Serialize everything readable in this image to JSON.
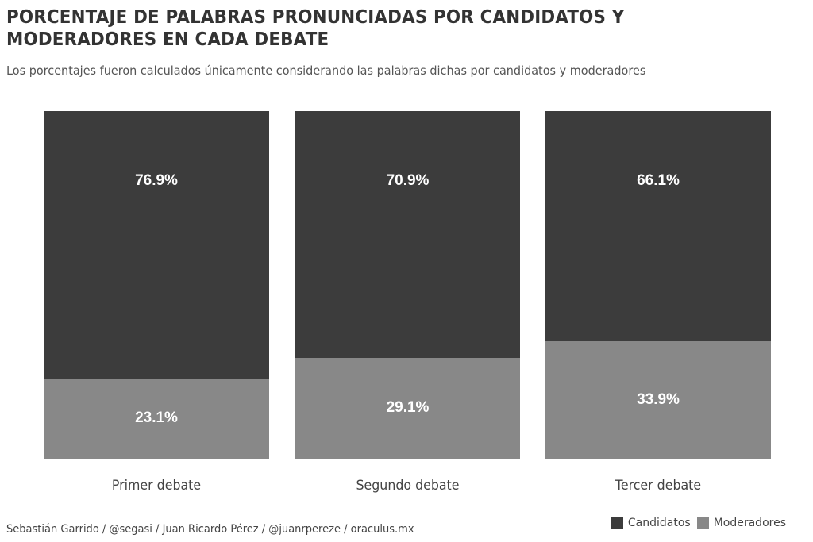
{
  "header": {
    "title": "PORCENTAJE DE PALABRAS PRONUNCIADAS POR CANDIDATOS Y MODERADORES EN CADA DEBATE",
    "subtitle": "Los porcentajes fueron calculados únicamente considerando las palabras dichas por candidatos y moderadores"
  },
  "footer": {
    "caption": "Sebastián Garrido / @segasi / Juan Ricardo Pérez / @juanrpereze / oraculus.mx"
  },
  "legend": {
    "items": [
      {
        "label": "Candidatos",
        "color": "#3c3c3c"
      },
      {
        "label": "Moderadores",
        "color": "#888888"
      }
    ]
  },
  "colors": {
    "candidatos": "#3c3c3c",
    "moderadores": "#888888",
    "background": "#ffffff"
  },
  "bars": [
    {
      "category": "Primer debate",
      "candidatos": 76.9,
      "moderadores": 23.1,
      "candidatos_label": "76.9%",
      "moderadores_label": "23.1%"
    },
    {
      "category": "Segundo debate",
      "candidatos": 70.9,
      "moderadores": 29.1,
      "candidatos_label": "70.9%",
      "moderadores_label": "29.1%"
    },
    {
      "category": "Tercer debate",
      "candidatos": 66.1,
      "moderadores": 33.9,
      "candidatos_label": "66.1%",
      "moderadores_label": "33.9%"
    }
  ],
  "chart_data": {
    "type": "bar",
    "stacked": true,
    "percent": true,
    "title": "PORCENTAJE DE PALABRAS PRONUNCIADAS POR CANDIDATOS Y MODERADORES EN CADA DEBATE",
    "subtitle": "Los porcentajes fueron calculados únicamente considerando las palabras dichas por candidatos y moderadores",
    "categories": [
      "Primer debate",
      "Segundo debate",
      "Tercer debate"
    ],
    "series": [
      {
        "name": "Candidatos",
        "values": [
          76.9,
          70.9,
          66.1
        ],
        "color": "#3c3c3c"
      },
      {
        "name": "Moderadores",
        "values": [
          23.1,
          29.1,
          33.9
        ],
        "color": "#888888"
      }
    ],
    "xlabel": "",
    "ylabel": "",
    "ylim": [
      0,
      100
    ],
    "grid": false,
    "legend_position": "bottom-right",
    "caption": "Sebastián Garrido / @segasi / Juan Ricardo Pérez / @juanrpereze / oraculus.mx"
  }
}
